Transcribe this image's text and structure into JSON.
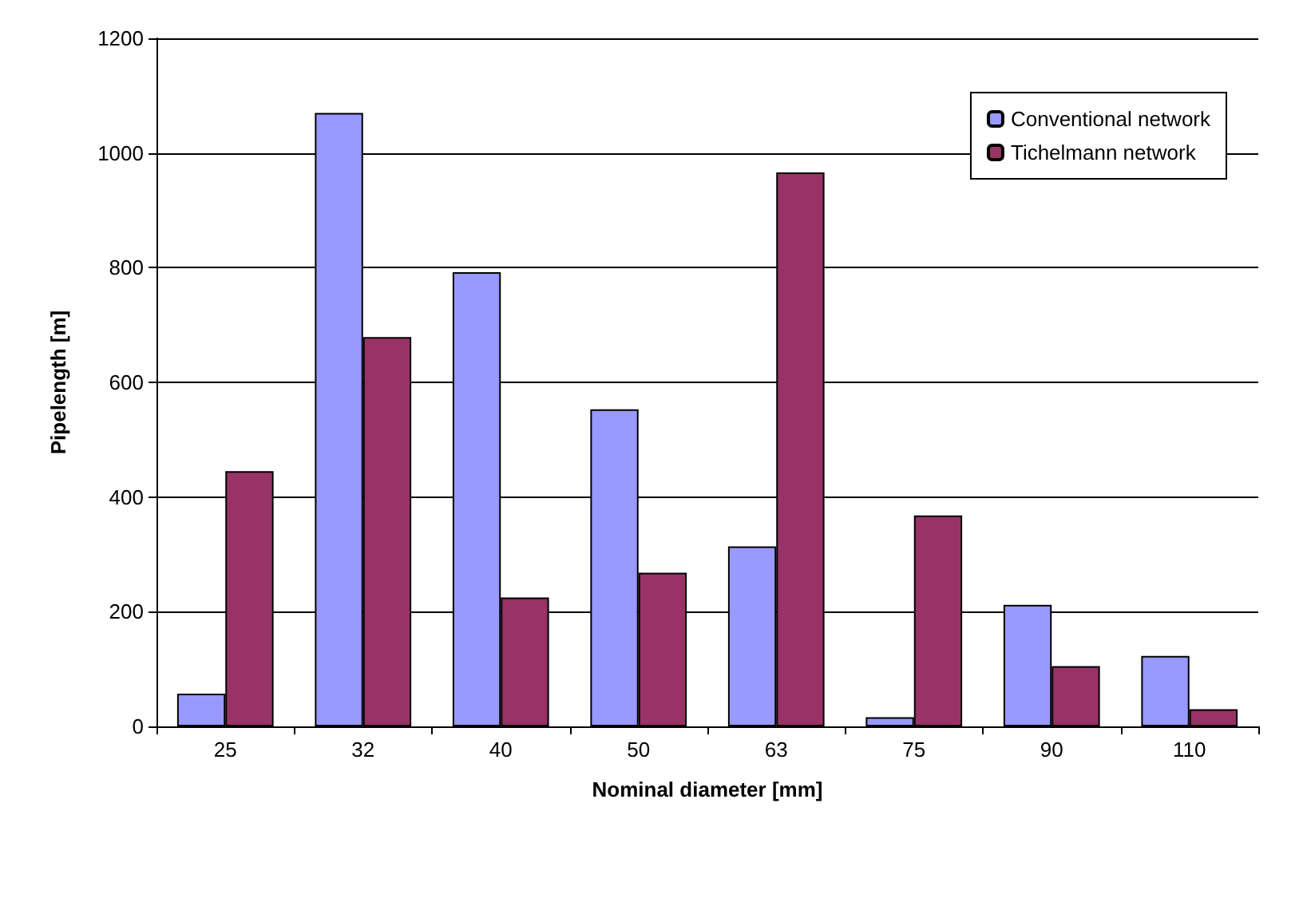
{
  "chart_data": {
    "type": "bar",
    "xlabel": "Nominal diameter [mm]",
    "ylabel": "Pipelength [m]",
    "categories": [
      "25",
      "32",
      "40",
      "50",
      "63",
      "75",
      "90",
      "110"
    ],
    "series": [
      {
        "name": "Conventional network",
        "color": "#9999ff",
        "values": [
          57,
          1070,
          792,
          553,
          314,
          16,
          212,
          123
        ]
      },
      {
        "name": "Tichelmann network",
        "color": "#993366",
        "values": [
          445,
          679,
          225,
          268,
          966,
          368,
          105,
          30
        ]
      }
    ],
    "ylim": [
      0,
      1200
    ],
    "yticks": [
      0,
      200,
      400,
      600,
      800,
      1000,
      1200
    ],
    "grid": "y",
    "legend": "top right"
  }
}
